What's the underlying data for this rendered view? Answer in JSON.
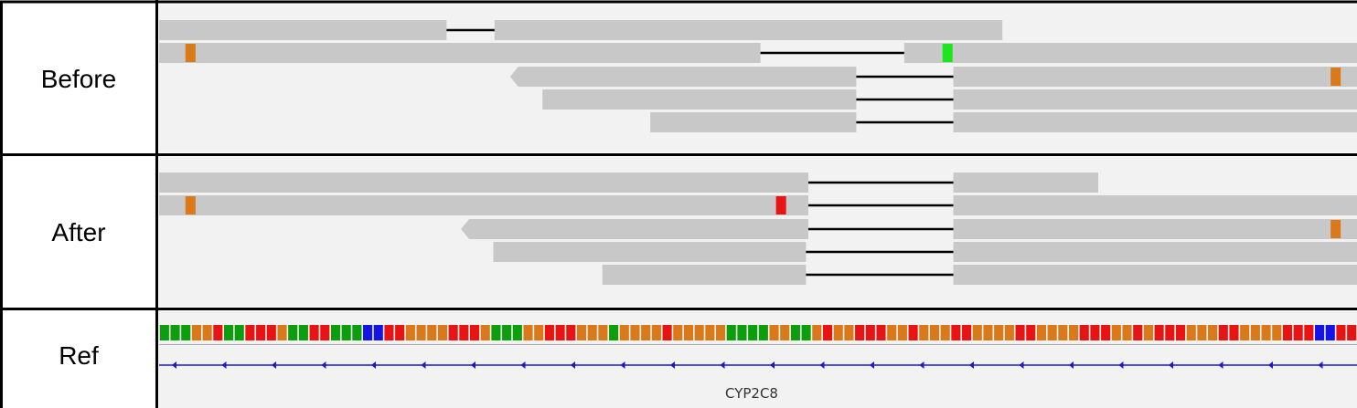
{
  "panels": [
    {
      "label": "Before",
      "reads": [
        {
          "blocks": [
            [
              0.0,
              0.24
            ],
            [
              0.28,
              0.704
            ]
          ],
          "arrow": null
        },
        {
          "blocks": [
            [
              0.0,
              0.502
            ],
            [
              0.622,
              1.0
            ]
          ],
          "arrow": null
        },
        {
          "blocks": [
            [
              0.293,
              0.582
            ],
            [
              0.663,
              1.0
            ]
          ],
          "arrow": "left"
        },
        {
          "blocks": [
            [
              0.32,
              0.582
            ],
            [
              0.663,
              1.0
            ]
          ],
          "arrow": null
        },
        {
          "blocks": [
            [
              0.41,
              0.582
            ],
            [
              0.663,
              1.0
            ]
          ],
          "arrow": null
        }
      ],
      "mismatches": [
        {
          "read": 1,
          "pos": 0.022,
          "color": "#d9791a"
        },
        {
          "read": 1,
          "pos": 0.654,
          "color": "#1ee61e"
        },
        {
          "read": 2,
          "pos": 0.978,
          "color": "#d9791a"
        }
      ]
    },
    {
      "label": "After",
      "reads": [
        {
          "blocks": [
            [
              0.0,
              0.542
            ],
            [
              0.663,
              0.784
            ]
          ],
          "arrow": null
        },
        {
          "blocks": [
            [
              0.0,
              0.542
            ],
            [
              0.663,
              1.0
            ]
          ],
          "arrow": null
        },
        {
          "blocks": [
            [
              0.252,
              0.542
            ],
            [
              0.663,
              1.0
            ]
          ],
          "arrow": "left"
        },
        {
          "blocks": [
            [
              0.279,
              0.54
            ],
            [
              0.663,
              1.0
            ]
          ],
          "arrow": null
        },
        {
          "blocks": [
            [
              0.37,
              0.54
            ],
            [
              0.663,
              1.0
            ]
          ],
          "arrow": null
        }
      ],
      "mismatches": [
        {
          "read": 1,
          "pos": 0.022,
          "color": "#d9791a"
        },
        {
          "read": 1,
          "pos": 0.515,
          "color": "#e81414"
        },
        {
          "read": 2,
          "pos": 0.978,
          "color": "#d9791a"
        }
      ]
    },
    {
      "label": "Ref",
      "bases": "GGGCCTGGTTTCGGTTGGGAATTCCCCTTTCGGGCCTTTCCCGCCCCTCCCCCGGGGCCGGCTCCTTTCCTCCCTTCCCCTTCCCCTTTCCTCTTTCCCTTCCCCTTTAATT",
      "gene_label": "CYP2C8",
      "strand": "minus"
    }
  ],
  "colors": {
    "read_fill": "#c8c8c8",
    "track_bg": "#f2f2f2",
    "intron_line": "#000000",
    "base_A": "#1414e6",
    "base_C": "#d9791a",
    "base_G": "#0d9e0d",
    "base_T": "#e81414",
    "gene_line": "#1a1acc"
  }
}
